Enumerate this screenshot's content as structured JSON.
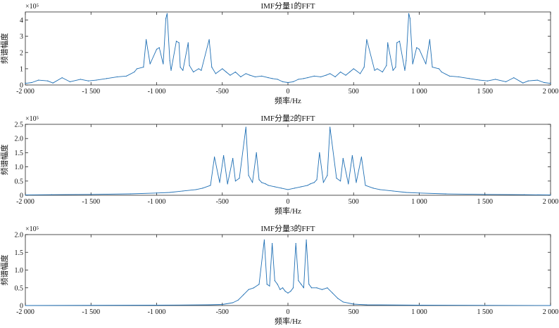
{
  "chart_data": [
    {
      "type": "line",
      "title": "IMF分量1的FFT",
      "xlabel": "频率/Hz",
      "ylabel": "频谱幅度",
      "exponent_label": "×10⁵",
      "xlim": [
        -2000,
        2000
      ],
      "ylim": [
        0,
        4.5
      ],
      "xtick_labels": [
        "-2 000",
        "-1 500",
        "-1 000",
        "-500",
        "0",
        "500",
        "1 000",
        "1 500",
        "2 000"
      ],
      "ytick_labels": [
        "0",
        "1",
        "2",
        "3",
        "4"
      ],
      "yticks": [
        0,
        1,
        2,
        3,
        4
      ],
      "grid": false,
      "series": [
        {
          "x": [
            -2000,
            -1950,
            -1900,
            -1830,
            -1790,
            -1720,
            -1660,
            -1580,
            -1520,
            -1460,
            -1380,
            -1300,
            -1230,
            -1170,
            -1150,
            -1100,
            -1080,
            -1050,
            -1000,
            -980,
            -950,
            -930,
            -920,
            -900,
            -890,
            -850,
            -830,
            -820,
            -800,
            -760,
            -750,
            -720,
            -680,
            -660,
            -600,
            -580,
            -550,
            -500,
            -470,
            -440,
            -400,
            -360,
            -320,
            -290,
            -250,
            -200,
            -150,
            -120,
            -80,
            -40,
            0,
            40,
            80,
            120,
            150,
            200,
            250,
            290,
            320,
            360,
            400,
            440,
            470,
            500,
            550,
            580,
            600,
            660,
            680,
            720,
            750,
            760,
            800,
            820,
            830,
            850,
            890,
            900,
            920,
            930,
            950,
            980,
            1000,
            1050,
            1080,
            1100,
            1150,
            1170,
            1230,
            1300,
            1380,
            1460,
            1520,
            1580,
            1660,
            1720,
            1790,
            1830,
            1900,
            1950,
            2000
          ],
          "y": [
            0.1,
            0.15,
            0.3,
            0.25,
            0.12,
            0.45,
            0.2,
            0.35,
            0.25,
            0.3,
            0.4,
            0.5,
            0.55,
            0.8,
            1.0,
            1.1,
            2.8,
            1.3,
            2.2,
            2.3,
            1.3,
            4.1,
            4.4,
            1.5,
            0.9,
            2.7,
            2.6,
            1.1,
            0.9,
            2.6,
            1.2,
            0.8,
            1.0,
            0.9,
            2.8,
            1.1,
            0.7,
            1.0,
            0.8,
            0.6,
            0.8,
            0.5,
            0.7,
            0.6,
            0.5,
            0.55,
            0.45,
            0.4,
            0.35,
            0.2,
            0.15,
            0.2,
            0.35,
            0.4,
            0.45,
            0.55,
            0.5,
            0.6,
            0.7,
            0.5,
            0.8,
            0.6,
            0.8,
            1.0,
            0.7,
            1.1,
            2.8,
            0.9,
            1.0,
            0.8,
            1.2,
            2.6,
            0.9,
            1.1,
            2.6,
            2.7,
            0.9,
            1.5,
            4.4,
            4.1,
            1.3,
            2.3,
            2.2,
            1.3,
            2.8,
            1.1,
            1.0,
            0.8,
            0.55,
            0.5,
            0.4,
            0.3,
            0.25,
            0.35,
            0.2,
            0.45,
            0.12,
            0.25,
            0.3,
            0.15,
            0.1
          ]
        }
      ]
    },
    {
      "type": "line",
      "title": "IMF分量2的FFT",
      "xlabel": "频率/Hz",
      "ylabel": "频谱幅度",
      "exponent_label": "×10⁵",
      "xlim": [
        -2000,
        2000
      ],
      "ylim": [
        0,
        2.5
      ],
      "xtick_labels": [
        "-2 000",
        "-1 500",
        "-1 000",
        "-500",
        "0",
        "500",
        "1 000",
        "1 500",
        "2 000"
      ],
      "ytick_labels": [
        "0",
        "0.5",
        "1.0",
        "1.5",
        "2.0",
        "2.5"
      ],
      "yticks": [
        0,
        0.5,
        1.0,
        1.5,
        2.0,
        2.5
      ],
      "grid": false,
      "series": [
        {
          "x": [
            -2000,
            -1800,
            -1500,
            -1200,
            -1000,
            -900,
            -800,
            -700,
            -650,
            -590,
            -560,
            -520,
            -490,
            -460,
            -420,
            -400,
            -370,
            -320,
            -300,
            -270,
            -240,
            -220,
            -200,
            -170,
            -150,
            -100,
            -50,
            0,
            50,
            100,
            150,
            170,
            200,
            220,
            240,
            270,
            300,
            320,
            370,
            400,
            420,
            460,
            490,
            520,
            560,
            590,
            650,
            700,
            800,
            900,
            1000,
            1200,
            1500,
            1800,
            2000
          ],
          "y": [
            0.01,
            0.02,
            0.03,
            0.05,
            0.08,
            0.1,
            0.15,
            0.2,
            0.25,
            0.35,
            1.35,
            0.45,
            1.4,
            0.4,
            1.3,
            0.5,
            0.6,
            2.4,
            0.7,
            0.45,
            1.5,
            0.55,
            0.45,
            0.4,
            0.35,
            0.3,
            0.25,
            0.2,
            0.25,
            0.3,
            0.35,
            0.4,
            0.45,
            0.55,
            1.5,
            0.45,
            0.7,
            2.4,
            0.6,
            0.5,
            1.3,
            0.4,
            1.4,
            0.45,
            1.35,
            0.35,
            0.25,
            0.2,
            0.15,
            0.1,
            0.08,
            0.05,
            0.03,
            0.02,
            0.01
          ]
        }
      ]
    },
    {
      "type": "line",
      "title": "IMF分量3的FFT",
      "xlabel": "频率/Hz",
      "ylabel": "频谱幅度",
      "exponent_label": "×10⁵",
      "xlim": [
        -2000,
        2000
      ],
      "ylim": [
        0,
        2.0
      ],
      "xtick_labels": [
        "-2 000",
        "-1 500",
        "-1 000",
        "-500",
        "0",
        "500",
        "1 000",
        "1 500",
        "2 000"
      ],
      "ytick_labels": [
        "0",
        "0.5",
        "1.0",
        "1.5",
        "2.0"
      ],
      "yticks": [
        0,
        0.5,
        1.0,
        1.5,
        2.0
      ],
      "grid": false,
      "series": [
        {
          "x": [
            -2000,
            -1000,
            -600,
            -500,
            -420,
            -380,
            -340,
            -300,
            -260,
            -220,
            -180,
            -160,
            -140,
            -120,
            -100,
            -80,
            -60,
            -40,
            -20,
            0,
            20,
            40,
            60,
            80,
            100,
            120,
            140,
            160,
            180,
            220,
            260,
            300,
            340,
            380,
            420,
            500,
            600,
            1000,
            2000
          ],
          "y": [
            0,
            0.01,
            0.02,
            0.03,
            0.08,
            0.15,
            0.3,
            0.45,
            0.5,
            0.6,
            1.85,
            0.6,
            0.55,
            1.75,
            0.7,
            0.6,
            0.45,
            0.5,
            0.4,
            0.35,
            0.4,
            0.5,
            1.75,
            0.7,
            0.6,
            0.5,
            1.85,
            0.6,
            0.5,
            0.5,
            0.45,
            0.5,
            0.35,
            0.2,
            0.1,
            0.04,
            0.02,
            0.01,
            0
          ]
        }
      ]
    }
  ]
}
